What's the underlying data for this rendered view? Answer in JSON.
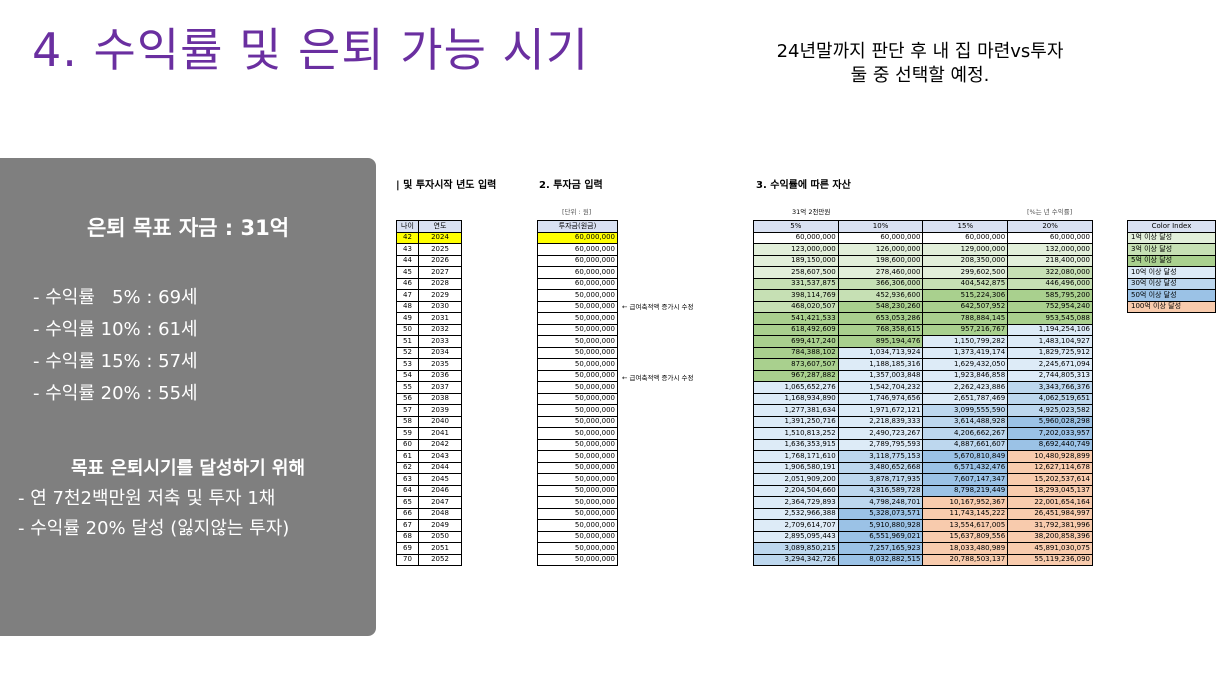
{
  "title": "4. 수익률 및 은퇴 가능 시기",
  "subtitle": [
    "24년말까지 판단 후 내 집 마련vs투자",
    "둘 중 선택할 예정."
  ],
  "panel": {
    "goal": "은퇴 목표 자금 : 31억",
    "rates": [
      "- 수익률   5% : 69세",
      "- 수익률 10% : 61세",
      "- 수익률 15% : 57세",
      "- 수익률 20% : 55세"
    ],
    "howto_title": "목표 은퇴시기를 달성하기 위해",
    "howto": [
      "- 연 7천2백만원 저축 및 투자 1채",
      "- 수익률 20% 달성 (잃지않는 투자)"
    ]
  },
  "sections": {
    "s1": "| 및 투자시작 년도 입력",
    "s2": "2. 투자금 입력",
    "s3": "3. 수익률에 따른 자산"
  },
  "inv_unit": "[단위 : 원]",
  "asset_caption": "31억 2천만원",
  "asset_unit": "[%는 년 수익률]",
  "notes": [
    "← 급여축적액 증가시 수정",
    "← 급여축적액 증가시 수정"
  ],
  "age_headers": [
    "나이",
    "연도"
  ],
  "inv_header": "투자금(원금)",
  "asset_headers": [
    "5%",
    "10%",
    "15%",
    "20%"
  ],
  "color_index": {
    "header": "Color Index",
    "items": [
      "1억 이상 달성",
      "3억 이상 달성",
      "5억 이상 달성",
      "10억 이상 달성",
      "30억 이상 달성",
      "50억 이상 달성",
      "100억 이상 달성"
    ],
    "colors": [
      "#e2efda",
      "#c6e0b4",
      "#a9d08e",
      "#ddebf7",
      "#bdd7ee",
      "#9bc2e6",
      "#f8cbad"
    ]
  },
  "rows": [
    [
      "42",
      "2024",
      "60,000,000",
      "60,000,000",
      "60,000,000",
      "60,000,000",
      "60,000,000"
    ],
    [
      "43",
      "2025",
      "60,000,000",
      "123,000,000",
      "126,000,000",
      "129,000,000",
      "132,000,000"
    ],
    [
      "44",
      "2026",
      "60,000,000",
      "189,150,000",
      "198,600,000",
      "208,350,000",
      "218,400,000"
    ],
    [
      "45",
      "2027",
      "60,000,000",
      "258,607,500",
      "278,460,000",
      "299,602,500",
      "322,080,000"
    ],
    [
      "46",
      "2028",
      "60,000,000",
      "331,537,875",
      "366,306,000",
      "404,542,875",
      "446,496,000"
    ],
    [
      "47",
      "2029",
      "50,000,000",
      "398,114,769",
      "452,936,600",
      "515,224,306",
      "585,795,200"
    ],
    [
      "48",
      "2030",
      "50,000,000",
      "468,020,507",
      "548,230,260",
      "642,507,952",
      "752,954,240"
    ],
    [
      "49",
      "2031",
      "50,000,000",
      "541,421,533",
      "653,053,286",
      "788,884,145",
      "953,545,088"
    ],
    [
      "50",
      "2032",
      "50,000,000",
      "618,492,609",
      "768,358,615",
      "957,216,767",
      "1,194,254,106"
    ],
    [
      "51",
      "2033",
      "50,000,000",
      "699,417,240",
      "895,194,476",
      "1,150,799,282",
      "1,483,104,927"
    ],
    [
      "52",
      "2034",
      "50,000,000",
      "784,388,102",
      "1,034,713,924",
      "1,373,419,174",
      "1,829,725,912"
    ],
    [
      "53",
      "2035",
      "50,000,000",
      "873,607,507",
      "1,188,185,316",
      "1,629,432,050",
      "2,245,671,094"
    ],
    [
      "54",
      "2036",
      "50,000,000",
      "967,287,882",
      "1,357,003,848",
      "1,923,846,858",
      "2,744,805,313"
    ],
    [
      "55",
      "2037",
      "50,000,000",
      "1,065,652,276",
      "1,542,704,232",
      "2,262,423,886",
      "3,343,766,376"
    ],
    [
      "56",
      "2038",
      "50,000,000",
      "1,168,934,890",
      "1,746,974,656",
      "2,651,787,469",
      "4,062,519,651"
    ],
    [
      "57",
      "2039",
      "50,000,000",
      "1,277,381,634",
      "1,971,672,121",
      "3,099,555,590",
      "4,925,023,582"
    ],
    [
      "58",
      "2040",
      "50,000,000",
      "1,391,250,716",
      "2,218,839,333",
      "3,614,488,928",
      "5,960,028,298"
    ],
    [
      "59",
      "2041",
      "50,000,000",
      "1,510,813,252",
      "2,490,723,267",
      "4,206,662,267",
      "7,202,033,957"
    ],
    [
      "60",
      "2042",
      "50,000,000",
      "1,636,353,915",
      "2,789,795,593",
      "4,887,661,607",
      "8,692,440,749"
    ],
    [
      "61",
      "2043",
      "50,000,000",
      "1,768,171,610",
      "3,118,775,153",
      "5,670,810,849",
      "10,480,928,899"
    ],
    [
      "62",
      "2044",
      "50,000,000",
      "1,906,580,191",
      "3,480,652,668",
      "6,571,432,476",
      "12,627,114,678"
    ],
    [
      "63",
      "2045",
      "50,000,000",
      "2,051,909,200",
      "3,878,717,935",
      "7,607,147,347",
      "15,202,537,614"
    ],
    [
      "64",
      "2046",
      "50,000,000",
      "2,204,504,660",
      "4,316,589,728",
      "8,798,219,449",
      "18,293,045,137"
    ],
    [
      "65",
      "2047",
      "50,000,000",
      "2,364,729,893",
      "4,798,248,701",
      "10,167,952,367",
      "22,001,654,164"
    ],
    [
      "66",
      "2048",
      "50,000,000",
      "2,532,966,388",
      "5,328,073,571",
      "11,743,145,222",
      "26,451,984,997"
    ],
    [
      "67",
      "2049",
      "50,000,000",
      "2,709,614,707",
      "5,910,880,928",
      "13,554,617,005",
      "31,792,381,996"
    ],
    [
      "68",
      "2050",
      "50,000,000",
      "2,895,095,443",
      "6,551,969,021",
      "15,637,809,556",
      "38,200,858,396"
    ],
    [
      "69",
      "2051",
      "50,000,000",
      "3,089,850,215",
      "7,257,165,923",
      "18,033,480,989",
      "45,891,030,075"
    ],
    [
      "70",
      "2052",
      "50,000,000",
      "3,294,342,726",
      "8,032,882,515",
      "20,788,503,137",
      "55,119,236,090"
    ]
  ]
}
